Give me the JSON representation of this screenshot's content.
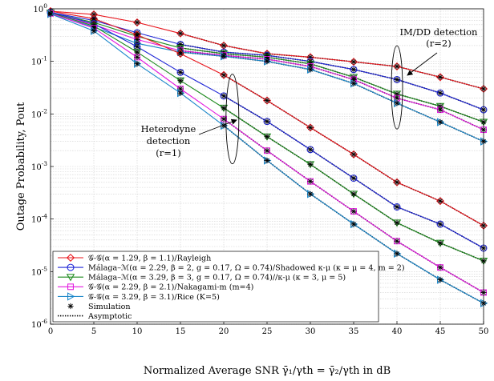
{
  "chart_data": {
    "type": "line",
    "xlabel": "Normalized Average SNR γ̄₁/γth = γ̄₂/γth in dB",
    "ylabel": "Outage Probability, Pout",
    "xlim": [
      0,
      50
    ],
    "ylim": [
      1e-06,
      1
    ],
    "y_scale": "log",
    "grid": true,
    "legend_position": "bottom-left",
    "x_ticks": [
      "0",
      "5",
      "10",
      "15",
      "20",
      "25",
      "30",
      "35",
      "40",
      "45",
      "50"
    ],
    "y_ticks": [
      "10-6",
      "10-5",
      "10-4",
      "10-3",
      "10-2",
      "10-1",
      "100"
    ],
    "x": [
      0,
      5,
      10,
      15,
      20,
      25,
      30,
      35,
      40,
      45,
      50
    ],
    "series": [
      {
        "name": "𝒢-𝒢(α = 1.29, β = 1.1)/Rayleigh",
        "marker": "diamond",
        "color": "#e8141b",
        "values": [
          0.9,
          0.78,
          0.55,
          0.34,
          0.2,
          0.14,
          0.12,
          0.098,
          0.08,
          0.05,
          0.03
        ]
      },
      {
        "name": "Málaga–ℳ(α = 2.29, β = 2, g = 0.17, Ω = 0.74)/Shadowed κ-μ (κ = μ = 4, m = 2)",
        "marker": "circle",
        "color": "#1d24d6",
        "values": [
          0.85,
          0.6,
          0.35,
          0.21,
          0.15,
          0.13,
          0.1,
          0.07,
          0.045,
          0.025,
          0.012
        ]
      },
      {
        "name": "Málaga–ℳ(α = 3.29, β = 3, g = 0.17, Ω = 0.74)//κ-μ (κ = 3, μ = 5)",
        "marker": "triangle-down",
        "color": "#1d8a1d",
        "values": [
          0.84,
          0.55,
          0.3,
          0.18,
          0.14,
          0.12,
          0.09,
          0.05,
          0.024,
          0.014,
          0.007
        ]
      },
      {
        "name": "𝒢-𝒢(α = 2.29, β = 2.1)/Nakagami-m (m=4)",
        "marker": "square",
        "color": "#e21adf",
        "values": [
          0.82,
          0.5,
          0.26,
          0.16,
          0.13,
          0.11,
          0.08,
          0.045,
          0.02,
          0.012,
          0.005
        ]
      },
      {
        "name": "𝒢-𝒢(α = 3.29, β = 3.1)/Rice (K=5)",
        "marker": "triangle-right",
        "color": "#1a86c9",
        "values": [
          0.8,
          0.45,
          0.22,
          0.15,
          0.125,
          0.1,
          0.07,
          0.038,
          0.016,
          0.007,
          0.003
        ]
      },
      {
        "name": "𝒢-𝒢(α = 1.29, β = 1.1)/Rayleigh (r=1)",
        "marker": "diamond",
        "color": "#e8141b",
        "values": [
          0.9,
          0.65,
          0.32,
          0.14,
          0.055,
          0.018,
          0.0055,
          0.0017,
          0.0005,
          0.00022,
          7.5e-05
        ]
      },
      {
        "name": "Málaga–ℳ(α = 2.29, β = 2, g = 0.17, Ω = 0.74)/Shadowed κ-μ (r=1)",
        "marker": "circle",
        "color": "#1d24d6",
        "values": [
          0.86,
          0.52,
          0.19,
          0.062,
          0.022,
          0.0072,
          0.0021,
          0.0006,
          0.00017,
          8e-05,
          2.8e-05
        ]
      },
      {
        "name": "Málaga–ℳ(α = 3.29, β = 3, g = 0.17, Ω = 0.74)//κ-μ (r=1)",
        "marker": "triangle-down",
        "color": "#1d8a1d",
        "values": [
          0.84,
          0.47,
          0.15,
          0.043,
          0.013,
          0.0037,
          0.0011,
          0.0003,
          8.5e-05,
          3.5e-05,
          1.6e-05
        ]
      },
      {
        "name": "𝒢-𝒢(α = 2.29, β = 2.1)/Nakagami-m (r=1)",
        "marker": "square",
        "color": "#e21adf",
        "values": [
          0.82,
          0.43,
          0.12,
          0.03,
          0.008,
          0.002,
          0.00052,
          0.00014,
          3.8e-05,
          1.2e-05,
          4e-06
        ]
      },
      {
        "name": "𝒢-𝒢(α = 3.29, β = 3.1)/Rice (r=1)",
        "marker": "triangle-right",
        "color": "#1a86c9",
        "values": [
          0.8,
          0.38,
          0.09,
          0.025,
          0.006,
          0.0013,
          0.0003,
          8e-05,
          2.2e-05,
          7e-06,
          2.5e-06
        ]
      }
    ],
    "legend": [
      {
        "label": "𝒢-𝒢(α = 1.29, β = 1.1)/Rayleigh",
        "marker": "diamond",
        "color": "#e8141b"
      },
      {
        "label": "Málaga–ℳ(α = 2.29, β = 2, g = 0.17, Ω = 0.74)/Shadowed κ-μ (κ = μ = 4, m = 2)",
        "marker": "circle",
        "color": "#1d24d6"
      },
      {
        "label": "Málaga–ℳ(α = 3.29, β = 3, g = 0.17, Ω = 0.74)//κ-μ (κ = 3, μ = 5)",
        "marker": "triangle-down",
        "color": "#1d8a1d"
      },
      {
        "label": "𝒢-𝒢(α = 2.29, β = 2.1)/Nakagami-m (m=4)",
        "marker": "square",
        "color": "#e21adf"
      },
      {
        "label": "𝒢-𝒢(α = 3.29, β = 3.1)/Rice (K=5)",
        "marker": "triangle-right",
        "color": "#1a86c9"
      },
      {
        "label": "Simulation",
        "marker": "star",
        "color": "#000000"
      },
      {
        "label": "Asymptotic",
        "marker": "dotted-line",
        "color": "#000000"
      }
    ],
    "annotations": [
      {
        "text": "IM/DD detection",
        "anchor": "upper-right"
      },
      {
        "text": "(r=2)",
        "anchor": "upper-right"
      },
      {
        "text": "Heterodyne",
        "anchor": "middle-left"
      },
      {
        "text": "detection",
        "anchor": "middle-left"
      },
      {
        "text": "(r=1)",
        "anchor": "middle-left"
      }
    ]
  }
}
